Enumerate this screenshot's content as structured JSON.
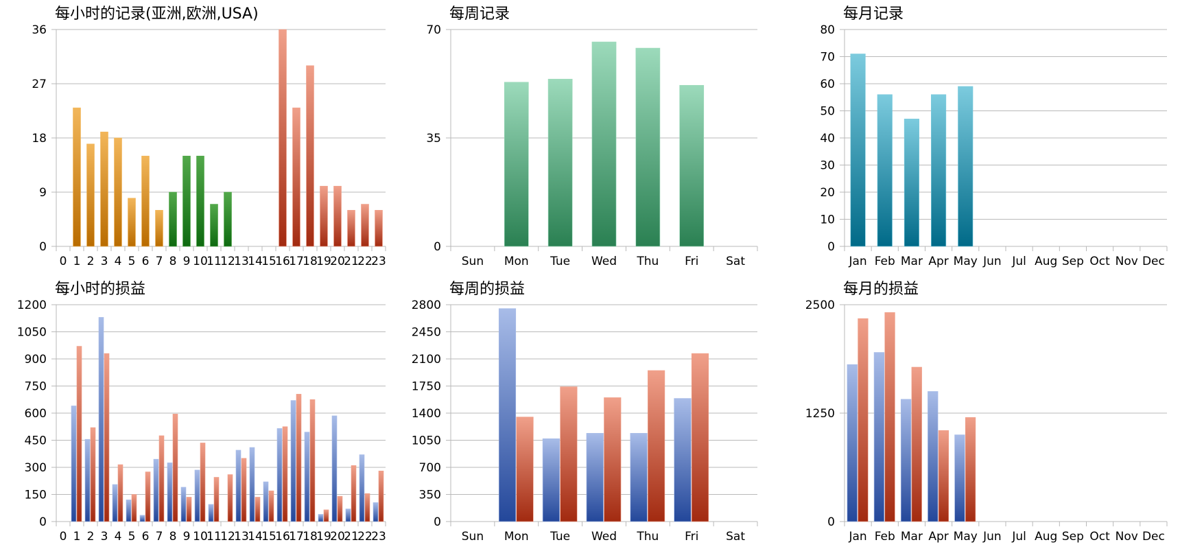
{
  "colors": {
    "orange": [
      "#f2b65a",
      "#b96c00"
    ],
    "green": [
      "#52a84a",
      "#0e6a10"
    ],
    "red": [
      "#f0a08a",
      "#a22a10"
    ],
    "teal_green": [
      "#9cdabb",
      "#2a8052"
    ],
    "cyan": [
      "#7ccbde",
      "#006a88"
    ],
    "blue": [
      "#a8bce8",
      "#23479a"
    ],
    "red2": [
      "#f0a08a",
      "#a22a10"
    ]
  },
  "chart_data": [
    {
      "type": "bar",
      "title": "每小时的记录(亚洲,欧洲,USA)",
      "categories": [
        "0",
        "1",
        "2",
        "3",
        "4",
        "5",
        "6",
        "7",
        "8",
        "9",
        "10",
        "11",
        "12",
        "13",
        "14",
        "15",
        "16",
        "17",
        "18",
        "19",
        "20",
        "21",
        "22",
        "23"
      ],
      "series": [
        {
          "values": [
            0,
            23,
            17,
            19,
            18,
            8,
            15,
            6,
            9,
            15,
            15,
            7,
            9,
            0,
            0,
            0,
            36,
            23,
            30,
            10,
            10,
            6,
            7,
            6
          ]
        }
      ],
      "bar_color_groups": [
        "orange",
        "orange",
        "orange",
        "orange",
        "orange",
        "orange",
        "orange",
        "orange",
        "green",
        "green",
        "green",
        "green",
        "green",
        "green",
        "green",
        "green",
        "red",
        "red",
        "red",
        "red",
        "red",
        "red",
        "red",
        "red"
      ],
      "yticks": [
        0,
        9,
        18,
        27,
        36
      ],
      "ylim": [
        0,
        36
      ],
      "grid": true
    },
    {
      "type": "bar",
      "title": "每周记录",
      "categories": [
        "Sun",
        "Mon",
        "Tue",
        "Wed",
        "Thu",
        "Fri",
        "Sat"
      ],
      "series": [
        {
          "values": [
            0,
            53,
            54,
            66,
            64,
            52,
            0
          ],
          "color": "teal_green"
        }
      ],
      "yticks": [
        0,
        35,
        70
      ],
      "ylim": [
        0,
        70
      ],
      "grid": true
    },
    {
      "type": "bar",
      "title": "每月记录",
      "categories": [
        "Jan",
        "Feb",
        "Mar",
        "Apr",
        "May",
        "Jun",
        "Jul",
        "Aug",
        "Sep",
        "Oct",
        "Nov",
        "Dec"
      ],
      "series": [
        {
          "values": [
            71,
            56,
            47,
            56,
            59,
            0,
            0,
            0,
            0,
            0,
            0,
            0
          ],
          "color": "cyan"
        }
      ],
      "yticks": [
        0,
        10,
        20,
        30,
        40,
        50,
        60,
        70,
        80
      ],
      "ylim": [
        0,
        80
      ],
      "grid": true
    },
    {
      "type": "bar",
      "title": "每小时的损益",
      "categories": [
        "0",
        "1",
        "2",
        "3",
        "4",
        "5",
        "6",
        "7",
        "8",
        "9",
        "10",
        "11",
        "12",
        "13",
        "14",
        "15",
        "16",
        "17",
        "18",
        "19",
        "20",
        "21",
        "22",
        "23"
      ],
      "series": [
        {
          "values": [
            0,
            640,
            455,
            1130,
            205,
            120,
            35,
            345,
            325,
            190,
            285,
            95,
            0,
            395,
            410,
            220,
            515,
            670,
            495,
            40,
            585,
            70,
            370,
            105
          ],
          "color": "blue"
        },
        {
          "values": [
            0,
            970,
            520,
            930,
            315,
            150,
            275,
            475,
            595,
            135,
            435,
            245,
            260,
            350,
            135,
            170,
            525,
            705,
            675,
            65,
            140,
            310,
            155,
            280
          ],
          "color": "red2"
        }
      ],
      "yticks": [
        0,
        150,
        300,
        450,
        600,
        750,
        900,
        1050,
        1200
      ],
      "ylim": [
        0,
        1200
      ],
      "grid": true
    },
    {
      "type": "bar",
      "title": "每周的损益",
      "categories": [
        "Sun",
        "Mon",
        "Tue",
        "Wed",
        "Thu",
        "Fri",
        "Sat"
      ],
      "series": [
        {
          "values": [
            0,
            2750,
            1070,
            1140,
            1140,
            1590,
            0
          ],
          "color": "blue"
        },
        {
          "values": [
            0,
            1350,
            1740,
            1600,
            1950,
            2170,
            0
          ],
          "color": "red2"
        }
      ],
      "yticks": [
        0,
        350,
        700,
        1050,
        1400,
        1750,
        2100,
        2450,
        2800
      ],
      "ylim": [
        0,
        2800
      ],
      "grid": true
    },
    {
      "type": "bar",
      "title": "每月的损益",
      "categories": [
        "Jan",
        "Feb",
        "Mar",
        "Apr",
        "May",
        "Jun",
        "Jul",
        "Aug",
        "Sep",
        "Oct",
        "Nov",
        "Dec"
      ],
      "series": [
        {
          "values": [
            1810,
            1950,
            1410,
            1500,
            1000,
            0,
            0,
            0,
            0,
            0,
            0,
            0
          ],
          "color": "blue"
        },
        {
          "values": [
            2340,
            2410,
            1780,
            1050,
            1200,
            0,
            0,
            0,
            0,
            0,
            0,
            0
          ],
          "color": "red2"
        }
      ],
      "yticks": [
        0,
        1250,
        2500
      ],
      "ylim": [
        0,
        2500
      ],
      "grid": true
    }
  ]
}
